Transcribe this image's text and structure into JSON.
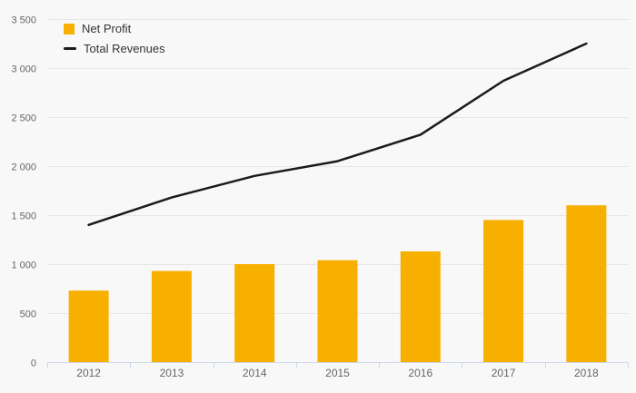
{
  "background": "#f8f8f8",
  "colors": {
    "bar": "#f8b000",
    "line": "#1a1a1a",
    "grid": "#e6e6e6",
    "axis": "#ccd6eb",
    "tick_label": "#666666",
    "legend_text": "#333333"
  },
  "chart_data": {
    "type": "bar",
    "subtype": "bar-line-combo",
    "categories": [
      "2012",
      "2013",
      "2014",
      "2015",
      "2016",
      "2017",
      "2018"
    ],
    "series": [
      {
        "name": "Net Profit",
        "type": "bar",
        "color": "#f8b000",
        "values": [
          730,
          930,
          1000,
          1040,
          1130,
          1450,
          1600
        ]
      },
      {
        "name": "Total Revenues",
        "type": "line",
        "color": "#1a1a1a",
        "values": [
          1400,
          1680,
          1900,
          2050,
          2320,
          2870,
          3250
        ]
      }
    ],
    "title": "",
    "xlabel": "",
    "ylabel": "",
    "ylim": [
      0,
      3500
    ],
    "ytick_step": 500,
    "ytick_labels": [
      "0",
      "500",
      "1 000",
      "1 500",
      "2 000",
      "2 500",
      "3 000",
      "3 500"
    ],
    "grid": true,
    "legend_position": "top-left"
  }
}
